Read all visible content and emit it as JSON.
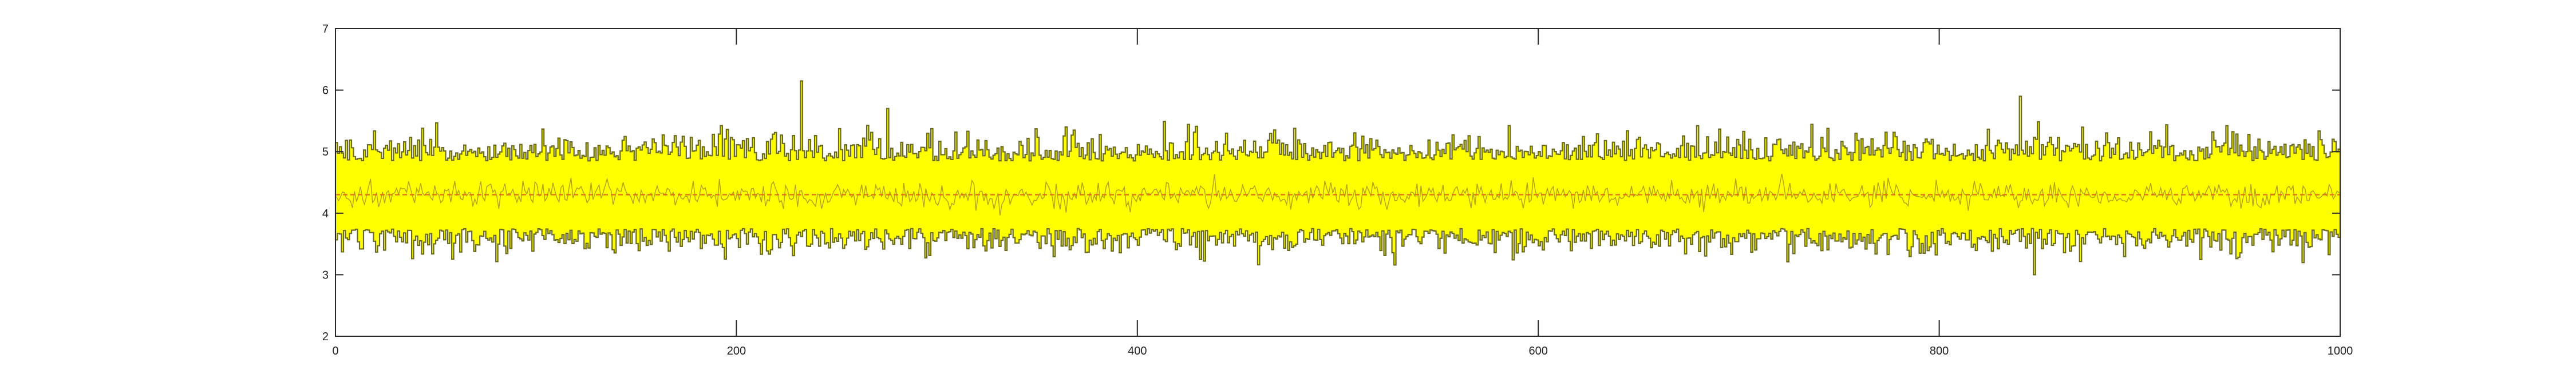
{
  "chart_data": {
    "type": "area",
    "title": "",
    "xlabel": "",
    "ylabel": "",
    "xlim": [
      0,
      1000
    ],
    "ylim": [
      2,
      7
    ],
    "xticks": [
      0,
      200,
      400,
      600,
      800,
      1000
    ],
    "yticks": [
      2,
      3,
      4,
      5,
      6,
      7
    ],
    "xtick_labels": [
      "0",
      "200",
      "400",
      "600",
      "800",
      "1000"
    ],
    "ytick_labels": [
      "2",
      "3",
      "4",
      "5",
      "6",
      "7"
    ],
    "grid": false,
    "legend": "none",
    "n_points": 1000,
    "series": [
      {
        "kind": "band",
        "center_value": 4.3,
        "typical_range": [
          3.5,
          5.2
        ],
        "observed_min": 2.95,
        "observed_max": 6.15,
        "fill_color": "#ffff00",
        "edge_color": "#6b6b1f"
      },
      {
        "kind": "mean-line",
        "value": 4.3,
        "color": "#e07010"
      }
    ],
    "annotations": [
      {
        "x": 232,
        "y": 6.15
      },
      {
        "x": 275,
        "y": 5.7
      },
      {
        "x": 840,
        "y": 5.9
      },
      {
        "x": 847,
        "y": 3.0
      }
    ]
  }
}
